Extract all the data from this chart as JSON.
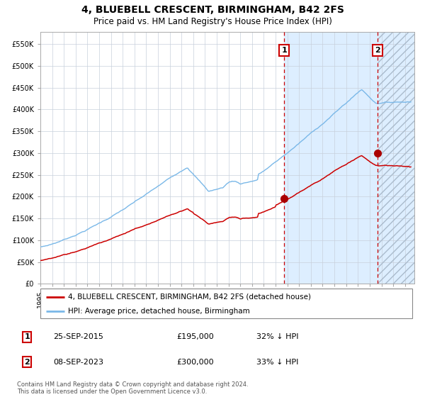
{
  "title": "4, BLUEBELL CRESCENT, BIRMINGHAM, B42 2FS",
  "subtitle": "Price paid vs. HM Land Registry's House Price Index (HPI)",
  "hpi_color": "#7ab8e8",
  "price_color": "#cc0000",
  "marker_color": "#aa0000",
  "dashed_line_color": "#cc0000",
  "background_fill_color": "#ddeeff",
  "hatch_color": "#bbccdd",
  "grid_color": "#c8d0dc",
  "spine_color": "#aaaaaa",
  "xlim_start": 1995.0,
  "xlim_end": 2026.8,
  "ylim": [
    0,
    578000
  ],
  "yticks": [
    0,
    50000,
    100000,
    150000,
    200000,
    250000,
    300000,
    350000,
    400000,
    450000,
    500000,
    550000
  ],
  "ytick_labels": [
    "£0",
    "£50K",
    "£100K",
    "£150K",
    "£200K",
    "£250K",
    "£300K",
    "£350K",
    "£400K",
    "£450K",
    "£500K",
    "£550K"
  ],
  "event1_x": 2015.73,
  "event1_y": 195000,
  "event2_x": 2023.69,
  "event2_y": 300000,
  "legend_label_price": "4, BLUEBELL CRESCENT, BIRMINGHAM, B42 2FS (detached house)",
  "legend_label_hpi": "HPI: Average price, detached house, Birmingham",
  "table_row1": [
    "1",
    "25-SEP-2015",
    "£195,000",
    "32% ↓ HPI"
  ],
  "table_row2": [
    "2",
    "08-SEP-2023",
    "£300,000",
    "33% ↓ HPI"
  ],
  "footer": "Contains HM Land Registry data © Crown copyright and database right 2024.\nThis data is licensed under the Open Government Licence v3.0.",
  "title_fontsize": 10,
  "subtitle_fontsize": 8.5,
  "tick_fontsize": 7,
  "legend_fontsize": 7.5,
  "table_fontsize": 8,
  "footer_fontsize": 6
}
